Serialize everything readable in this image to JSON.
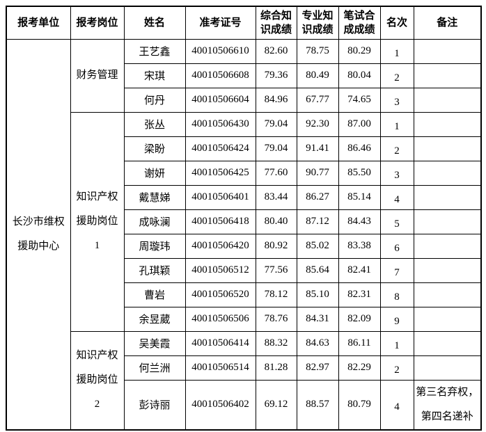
{
  "table": {
    "headers": [
      "报考单位",
      "报考岗位",
      "姓名",
      "准考证号",
      "综合知\n识成绩",
      "专业知\n识成绩",
      "笔试合\n成成绩",
      "名次",
      "备注"
    ],
    "unit": "长沙市维权\n援助中心",
    "groups": [
      {
        "position": "财务管理",
        "rows": [
          {
            "name": "王艺鑫",
            "ticket": "40010506610",
            "comprehensive": "82.60",
            "professional": "78.75",
            "composite": "80.29",
            "rank": "1",
            "remark": ""
          },
          {
            "name": "宋琪",
            "ticket": "40010506608",
            "comprehensive": "79.36",
            "professional": "80.49",
            "composite": "80.04",
            "rank": "2",
            "remark": ""
          },
          {
            "name": "何丹",
            "ticket": "40010506604",
            "comprehensive": "84.96",
            "professional": "67.77",
            "composite": "74.65",
            "rank": "3",
            "remark": ""
          }
        ]
      },
      {
        "position": "知识产权\n援助岗位\n1",
        "rows": [
          {
            "name": "张丛",
            "ticket": "40010506430",
            "comprehensive": "79.04",
            "professional": "92.30",
            "composite": "87.00",
            "rank": "1",
            "remark": ""
          },
          {
            "name": "梁盼",
            "ticket": "40010506424",
            "comprehensive": "79.04",
            "professional": "91.41",
            "composite": "86.46",
            "rank": "2",
            "remark": ""
          },
          {
            "name": "谢妍",
            "ticket": "40010506425",
            "comprehensive": "77.60",
            "professional": "90.77",
            "composite": "85.50",
            "rank": "3",
            "remark": ""
          },
          {
            "name": "戴慧娣",
            "ticket": "40010506401",
            "comprehensive": "83.44",
            "professional": "86.27",
            "composite": "85.14",
            "rank": "4",
            "remark": ""
          },
          {
            "name": "成咏澜",
            "ticket": "40010506418",
            "comprehensive": "80.40",
            "professional": "87.12",
            "composite": "84.43",
            "rank": "5",
            "remark": ""
          },
          {
            "name": "周璇玮",
            "ticket": "40010506420",
            "comprehensive": "80.92",
            "professional": "85.02",
            "composite": "83.38",
            "rank": "6",
            "remark": ""
          },
          {
            "name": "孔琪颖",
            "ticket": "40010506512",
            "comprehensive": "77.56",
            "professional": "85.64",
            "composite": "82.41",
            "rank": "7",
            "remark": ""
          },
          {
            "name": "曹岩",
            "ticket": "40010506520",
            "comprehensive": "78.12",
            "professional": "85.10",
            "composite": "82.31",
            "rank": "8",
            "remark": ""
          },
          {
            "name": "余昱葳",
            "ticket": "40010506506",
            "comprehensive": "78.76",
            "professional": "84.31",
            "composite": "82.09",
            "rank": "9",
            "remark": ""
          }
        ]
      },
      {
        "position": "知识产权\n援助岗位\n2",
        "rows": [
          {
            "name": "吴美霞",
            "ticket": "40010506414",
            "comprehensive": "88.32",
            "professional": "84.63",
            "composite": "86.11",
            "rank": "1",
            "remark": ""
          },
          {
            "name": "何兰洲",
            "ticket": "40010506514",
            "comprehensive": "81.28",
            "professional": "82.97",
            "composite": "82.29",
            "rank": "2",
            "remark": ""
          },
          {
            "name": "彭诗丽",
            "ticket": "40010506402",
            "comprehensive": "69.12",
            "professional": "88.57",
            "composite": "80.79",
            "rank": "4",
            "remark": "第三名弃权，\n第四名递补"
          }
        ]
      }
    ]
  }
}
